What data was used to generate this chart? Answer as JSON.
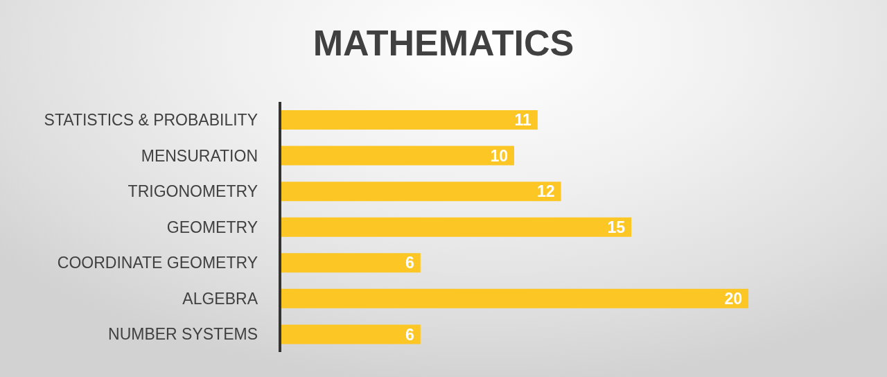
{
  "chart_data": {
    "type": "bar",
    "title": "MATHEMATICS",
    "orientation": "horizontal",
    "categories": [
      "STATISTICS & PROBABILITY",
      "MENSURATION",
      "TRIGONOMETRY",
      "GEOMETRY",
      "COORDINATE GEOMETRY",
      "ALGEBRA",
      "NUMBER SYSTEMS"
    ],
    "values": [
      11,
      10,
      12,
      15,
      6,
      20,
      6
    ],
    "color": "#fcc624",
    "data_labels": true
  }
}
